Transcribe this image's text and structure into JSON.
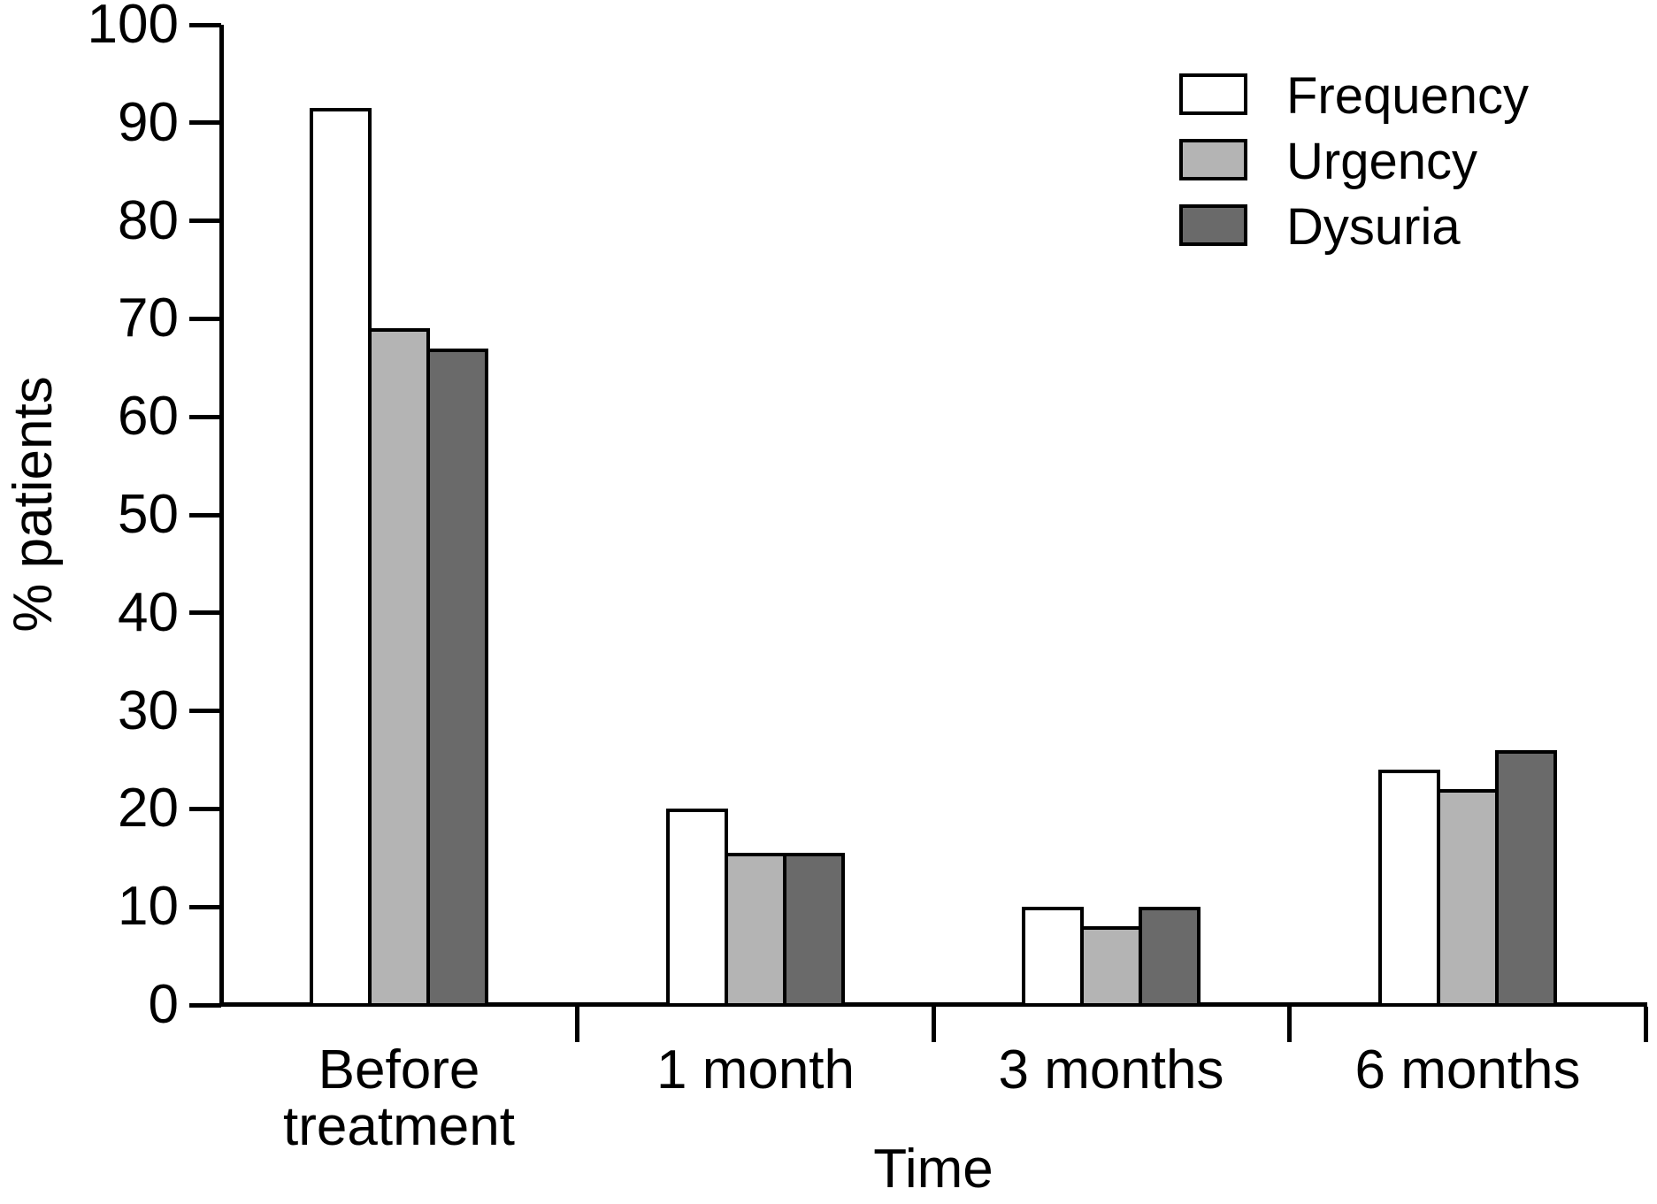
{
  "chart_data": {
    "type": "bar",
    "title": "",
    "categories": [
      "Before treatment",
      "1 month",
      "3 months",
      "6 months"
    ],
    "series": [
      {
        "name": "Frequency",
        "fill": "#ffffff",
        "values": [
          91.5,
          20,
          10,
          24
        ]
      },
      {
        "name": "Urgency",
        "fill": "#b4b4b4",
        "values": [
          69,
          15.5,
          8,
          22
        ]
      },
      {
        "name": "Dysuria",
        "fill": "#6a6a6a",
        "values": [
          67,
          15.5,
          10,
          26
        ]
      }
    ],
    "xlabel": "Time",
    "ylabel": "% patients",
    "ylim": [
      0,
      100
    ],
    "y_ticks": [
      0,
      10,
      20,
      30,
      40,
      50,
      60,
      70,
      80,
      90,
      100
    ],
    "grid": false,
    "legend_position": "top-right",
    "axis_color": "#000000",
    "bar_border_color": "#000000",
    "text_color": "#000000",
    "background_color": "#ffffff"
  }
}
